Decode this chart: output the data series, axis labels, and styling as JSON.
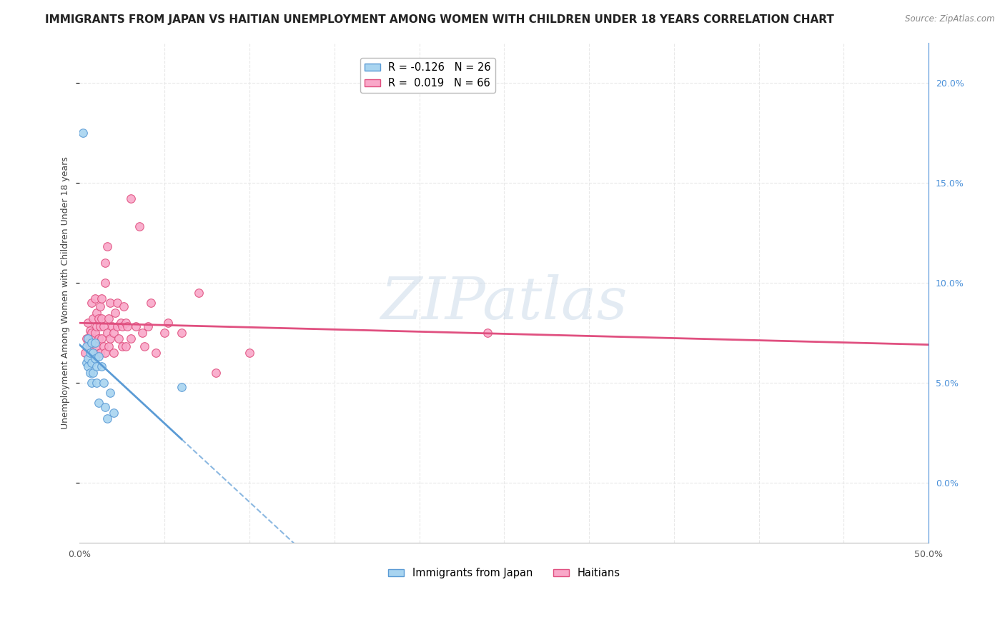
{
  "title": "IMMIGRANTS FROM JAPAN VS HAITIAN UNEMPLOYMENT AMONG WOMEN WITH CHILDREN UNDER 18 YEARS CORRELATION CHART",
  "source": "Source: ZipAtlas.com",
  "ylabel": "Unemployment Among Women with Children Under 18 years",
  "xlim": [
    0.0,
    0.5
  ],
  "ylim": [
    -0.03,
    0.22
  ],
  "legend_japan": "R = -0.126   N = 26",
  "legend_haitian": "R =  0.019   N = 66",
  "legend_label_japan": "Immigrants from Japan",
  "legend_label_haitian": "Haitians",
  "japan_color": "#a8d4f0",
  "haitian_color": "#f9a8c9",
  "japan_line_color": "#5b9bd5",
  "haitian_line_color": "#e05080",
  "japan_scatter": [
    [
      0.002,
      0.175
    ],
    [
      0.004,
      0.068
    ],
    [
      0.004,
      0.06
    ],
    [
      0.005,
      0.072
    ],
    [
      0.005,
      0.062
    ],
    [
      0.005,
      0.058
    ],
    [
      0.006,
      0.065
    ],
    [
      0.006,
      0.055
    ],
    [
      0.007,
      0.07
    ],
    [
      0.007,
      0.06
    ],
    [
      0.007,
      0.05
    ],
    [
      0.008,
      0.065
    ],
    [
      0.008,
      0.055
    ],
    [
      0.009,
      0.07
    ],
    [
      0.009,
      0.062
    ],
    [
      0.01,
      0.058
    ],
    [
      0.01,
      0.05
    ],
    [
      0.011,
      0.063
    ],
    [
      0.011,
      0.04
    ],
    [
      0.013,
      0.058
    ],
    [
      0.014,
      0.05
    ],
    [
      0.015,
      0.038
    ],
    [
      0.016,
      0.032
    ],
    [
      0.018,
      0.045
    ],
    [
      0.02,
      0.035
    ],
    [
      0.06,
      0.048
    ]
  ],
  "haitian_scatter": [
    [
      0.003,
      0.065
    ],
    [
      0.004,
      0.072
    ],
    [
      0.005,
      0.08
    ],
    [
      0.005,
      0.07
    ],
    [
      0.006,
      0.068
    ],
    [
      0.006,
      0.076
    ],
    [
      0.007,
      0.065
    ],
    [
      0.007,
      0.075
    ],
    [
      0.007,
      0.09
    ],
    [
      0.008,
      0.072
    ],
    [
      0.008,
      0.082
    ],
    [
      0.009,
      0.065
    ],
    [
      0.009,
      0.075
    ],
    [
      0.009,
      0.092
    ],
    [
      0.01,
      0.068
    ],
    [
      0.01,
      0.078
    ],
    [
      0.01,
      0.085
    ],
    [
      0.011,
      0.072
    ],
    [
      0.011,
      0.082
    ],
    [
      0.012,
      0.065
    ],
    [
      0.012,
      0.078
    ],
    [
      0.012,
      0.088
    ],
    [
      0.013,
      0.072
    ],
    [
      0.013,
      0.082
    ],
    [
      0.013,
      0.092
    ],
    [
      0.014,
      0.068
    ],
    [
      0.014,
      0.078
    ],
    [
      0.015,
      0.065
    ],
    [
      0.015,
      0.1
    ],
    [
      0.015,
      0.11
    ],
    [
      0.016,
      0.075
    ],
    [
      0.016,
      0.118
    ],
    [
      0.017,
      0.068
    ],
    [
      0.017,
      0.082
    ],
    [
      0.018,
      0.072
    ],
    [
      0.018,
      0.09
    ],
    [
      0.019,
      0.078
    ],
    [
      0.02,
      0.065
    ],
    [
      0.02,
      0.075
    ],
    [
      0.021,
      0.085
    ],
    [
      0.022,
      0.078
    ],
    [
      0.022,
      0.09
    ],
    [
      0.023,
      0.072
    ],
    [
      0.024,
      0.08
    ],
    [
      0.025,
      0.068
    ],
    [
      0.025,
      0.078
    ],
    [
      0.026,
      0.088
    ],
    [
      0.027,
      0.08
    ],
    [
      0.027,
      0.068
    ],
    [
      0.028,
      0.078
    ],
    [
      0.03,
      0.142
    ],
    [
      0.03,
      0.072
    ],
    [
      0.033,
      0.078
    ],
    [
      0.035,
      0.128
    ],
    [
      0.037,
      0.075
    ],
    [
      0.038,
      0.068
    ],
    [
      0.04,
      0.078
    ],
    [
      0.042,
      0.09
    ],
    [
      0.045,
      0.065
    ],
    [
      0.05,
      0.075
    ],
    [
      0.052,
      0.08
    ],
    [
      0.06,
      0.075
    ],
    [
      0.07,
      0.095
    ],
    [
      0.08,
      0.055
    ],
    [
      0.1,
      0.065
    ],
    [
      0.24,
      0.075
    ]
  ],
  "bg_color": "#ffffff",
  "grid_color": "#e8e8e8",
  "watermark_text": "ZIPatlas",
  "title_fontsize": 11,
  "axis_label_fontsize": 9,
  "tick_fontsize": 9,
  "right_tick_color": "#4a90d9"
}
